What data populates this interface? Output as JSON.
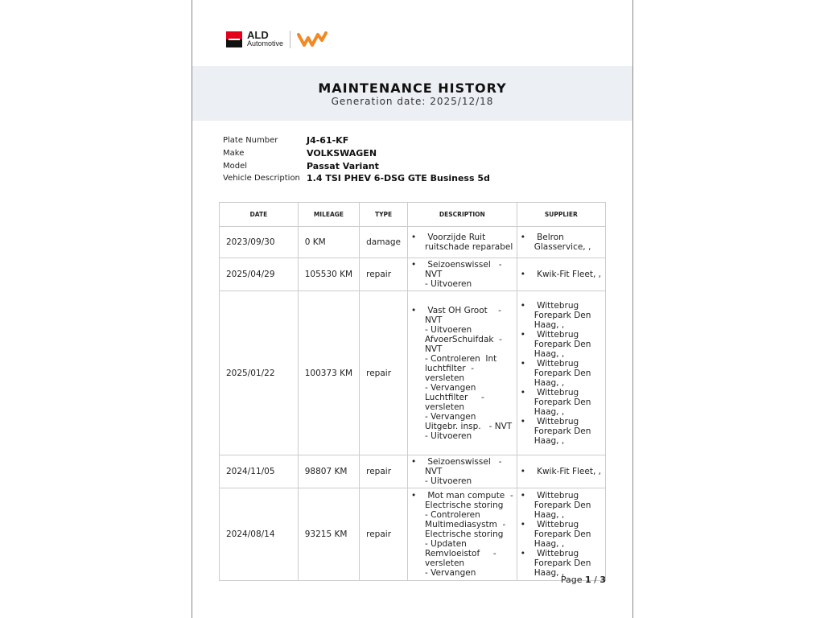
{
  "logo": {
    "brand_line1": "ALD",
    "brand_line2": "Automotive"
  },
  "header": {
    "title": "MAINTENANCE HISTORY",
    "generation_date": "Generation date: 2025/12/18"
  },
  "vehicle": [
    {
      "label": "Plate Number",
      "value": "J4-61-KF"
    },
    {
      "label": "Make",
      "value": "VOLKSWAGEN"
    },
    {
      "label": "Model",
      "value": "Passat Variant"
    },
    {
      "label": "Vehicle Description",
      "value": "1.4 TSI PHEV 6-DSG GTE Business 5d"
    }
  ],
  "table": {
    "headers": [
      "DATE",
      "MILEAGE",
      "TYPE",
      "DESCRIPTION",
      "SUPPLIER"
    ],
    "rows": [
      {
        "date": "2023/09/30",
        "mileage": "0 KM",
        "type": "damage",
        "description": " Voorzijde Ruit\nruitschade reparabel",
        "suppliers": [
          " Belron\nGlasservice, ,"
        ]
      },
      {
        "date": "2025/04/29",
        "mileage": "105530 KM",
        "type": "repair",
        "description": " Seizoenswissel   -\nNVT\n- Uitvoeren",
        "suppliers": [
          " Kwik-Fit Fleet, ,"
        ]
      },
      {
        "date": "2025/01/22",
        "mileage": "100373 KM",
        "type": "repair",
        "description": " Vast OH Groot    -\nNVT\n- Uitvoeren\nAfvoerSchuifdak  -\nNVT\n- Controleren  Int\nluchtfilter  -\nversleten\n- Vervangen\nLuchtfilter     -\nversleten\n- Vervangen\nUitgebr. insp.   - NVT\n- Uitvoeren",
        "suppliers": [
          " Wittebrug\nForepark Den\nHaag, ,",
          " Wittebrug\nForepark Den\nHaag, ,",
          " Wittebrug\nForepark Den\nHaag, ,",
          " Wittebrug\nForepark Den\nHaag, ,",
          " Wittebrug\nForepark Den\nHaag, ,"
        ]
      },
      {
        "date": "2024/11/05",
        "mileage": "98807 KM",
        "type": "repair",
        "description": " Seizoenswissel   -\nNVT\n- Uitvoeren",
        "suppliers": [
          " Kwik-Fit Fleet, ,"
        ]
      },
      {
        "date": "2024/08/14",
        "mileage": "93215 KM",
        "type": "repair",
        "description": " Mot man compute  -\nElectrische storing\n- Controleren\nMultimediasystm  -\nElectrische storing\n- Updaten\nRemvloeistof     -\nversleten\n- Vervangen",
        "suppliers": [
          " Wittebrug\nForepark Den\nHaag, ,",
          " Wittebrug\nForepark Den\nHaag, ,",
          " Wittebrug\nForepark Den\nHaag, ,"
        ]
      }
    ]
  },
  "footer": {
    "page_label": "Page",
    "current": "1",
    "sep": " / ",
    "total": "3"
  },
  "colors": {
    "band": "#eceff4",
    "brand_red": "#e2001a",
    "leaseplan_orange": "#f08a24"
  }
}
